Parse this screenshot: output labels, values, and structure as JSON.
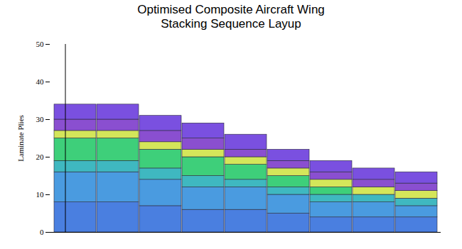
{
  "chart_data": {
    "type": "bar",
    "title": "Optimised Composite Aircraft Wing\nStacking Sequence Layup",
    "ylabel": "Laminate Plies",
    "categories": [
      null,
      null,
      null,
      null,
      null,
      null,
      null,
      null,
      null
    ],
    "stacked": true,
    "tick_labels": "y",
    "ylim": [
      0,
      50
    ],
    "yticks": [
      0,
      10,
      20,
      30,
      40,
      50
    ],
    "series": [
      {
        "color": "#4a7fe0",
        "values": [
          8,
          8,
          7,
          6,
          6,
          5,
          4,
          4,
          4
        ]
      },
      {
        "color": "#4a9be0",
        "values": [
          8,
          8,
          7,
          6,
          6,
          5,
          4,
          4,
          3
        ]
      },
      {
        "color": "#3fb8c0",
        "values": [
          3,
          3,
          3,
          3,
          2,
          2,
          2,
          2,
          2
        ]
      },
      {
        "color": "#3ecf7a",
        "values": [
          6,
          6,
          5,
          5,
          4,
          3,
          2,
          0,
          0
        ]
      },
      {
        "color": "#d4e65a",
        "values": [
          2,
          2,
          2,
          2,
          2,
          2,
          2,
          2,
          2
        ]
      },
      {
        "color": "#8a4fd0",
        "values": [
          3,
          3,
          3,
          3,
          2,
          2,
          2,
          2,
          2
        ]
      },
      {
        "color": "#7a50e0",
        "values": [
          4,
          4,
          4,
          4,
          4,
          3,
          3,
          3,
          3
        ]
      }
    ]
  }
}
